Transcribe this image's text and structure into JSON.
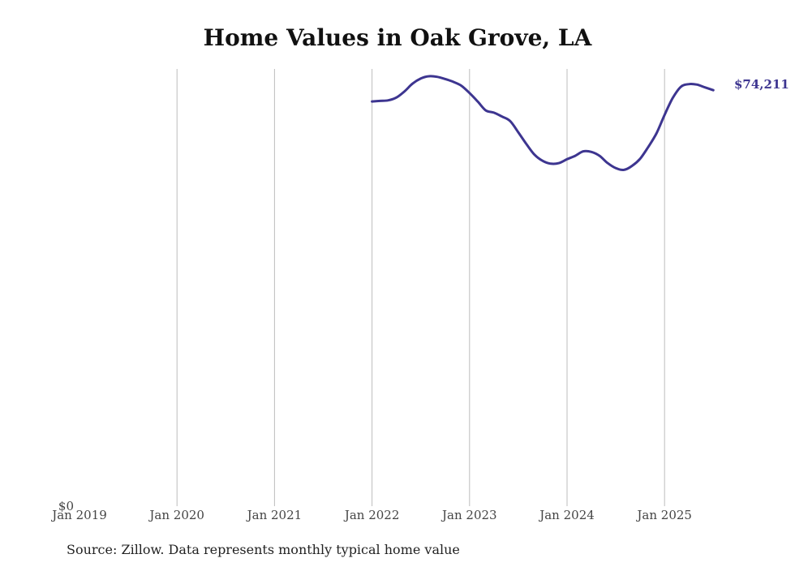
{
  "chart_data": {
    "type": "line",
    "title": "Home Values in Oak Grove, LA",
    "xlabel": "",
    "ylabel": "",
    "x_ticks": [
      "Jan 2019",
      "Jan 2020",
      "Jan 2021",
      "Jan 2022",
      "Jan 2023",
      "Jan 2024",
      "Jan 2025"
    ],
    "y_ticks": [
      {
        "value": 0,
        "label": "$0"
      }
    ],
    "ylim": [
      0,
      78000
    ],
    "xlim": [
      "2019-01",
      "2025-11"
    ],
    "grid": "vertical",
    "series": [
      {
        "color": "#3d3590",
        "end_label": "$74,211",
        "points": [
          [
            "2022-01",
            72200
          ],
          [
            "2022-02",
            72300
          ],
          [
            "2022-03",
            72400
          ],
          [
            "2022-04",
            72900
          ],
          [
            "2022-05",
            74000
          ],
          [
            "2022-06",
            75400
          ],
          [
            "2022-07",
            76300
          ],
          [
            "2022-08",
            76700
          ],
          [
            "2022-09",
            76600
          ],
          [
            "2022-10",
            76200
          ],
          [
            "2022-11",
            75700
          ],
          [
            "2022-12",
            75000
          ],
          [
            "2023-01",
            73700
          ],
          [
            "2023-02",
            72200
          ],
          [
            "2023-03",
            70600
          ],
          [
            "2023-04",
            70200
          ],
          [
            "2023-05",
            69500
          ],
          [
            "2023-06",
            68700
          ],
          [
            "2023-07",
            66700
          ],
          [
            "2023-08",
            64600
          ],
          [
            "2023-09",
            62700
          ],
          [
            "2023-10",
            61600
          ],
          [
            "2023-11",
            61100
          ],
          [
            "2023-12",
            61200
          ],
          [
            "2024-01",
            61900
          ],
          [
            "2024-02",
            62500
          ],
          [
            "2024-03",
            63300
          ],
          [
            "2024-04",
            63200
          ],
          [
            "2024-05",
            62500
          ],
          [
            "2024-06",
            61200
          ],
          [
            "2024-07",
            60300
          ],
          [
            "2024-08",
            60000
          ],
          [
            "2024-09",
            60700
          ],
          [
            "2024-10",
            62000
          ],
          [
            "2024-11",
            64100
          ],
          [
            "2024-12",
            66500
          ],
          [
            "2025-01",
            69800
          ],
          [
            "2025-02",
            72800
          ],
          [
            "2025-03",
            74800
          ],
          [
            "2025-04",
            75300
          ],
          [
            "2025-05",
            75200
          ],
          [
            "2025-06",
            74700
          ],
          [
            "2025-07",
            74211
          ]
        ]
      }
    ]
  },
  "footer": {
    "source": "Source: Zillow. Data represents monthly typical home value"
  }
}
